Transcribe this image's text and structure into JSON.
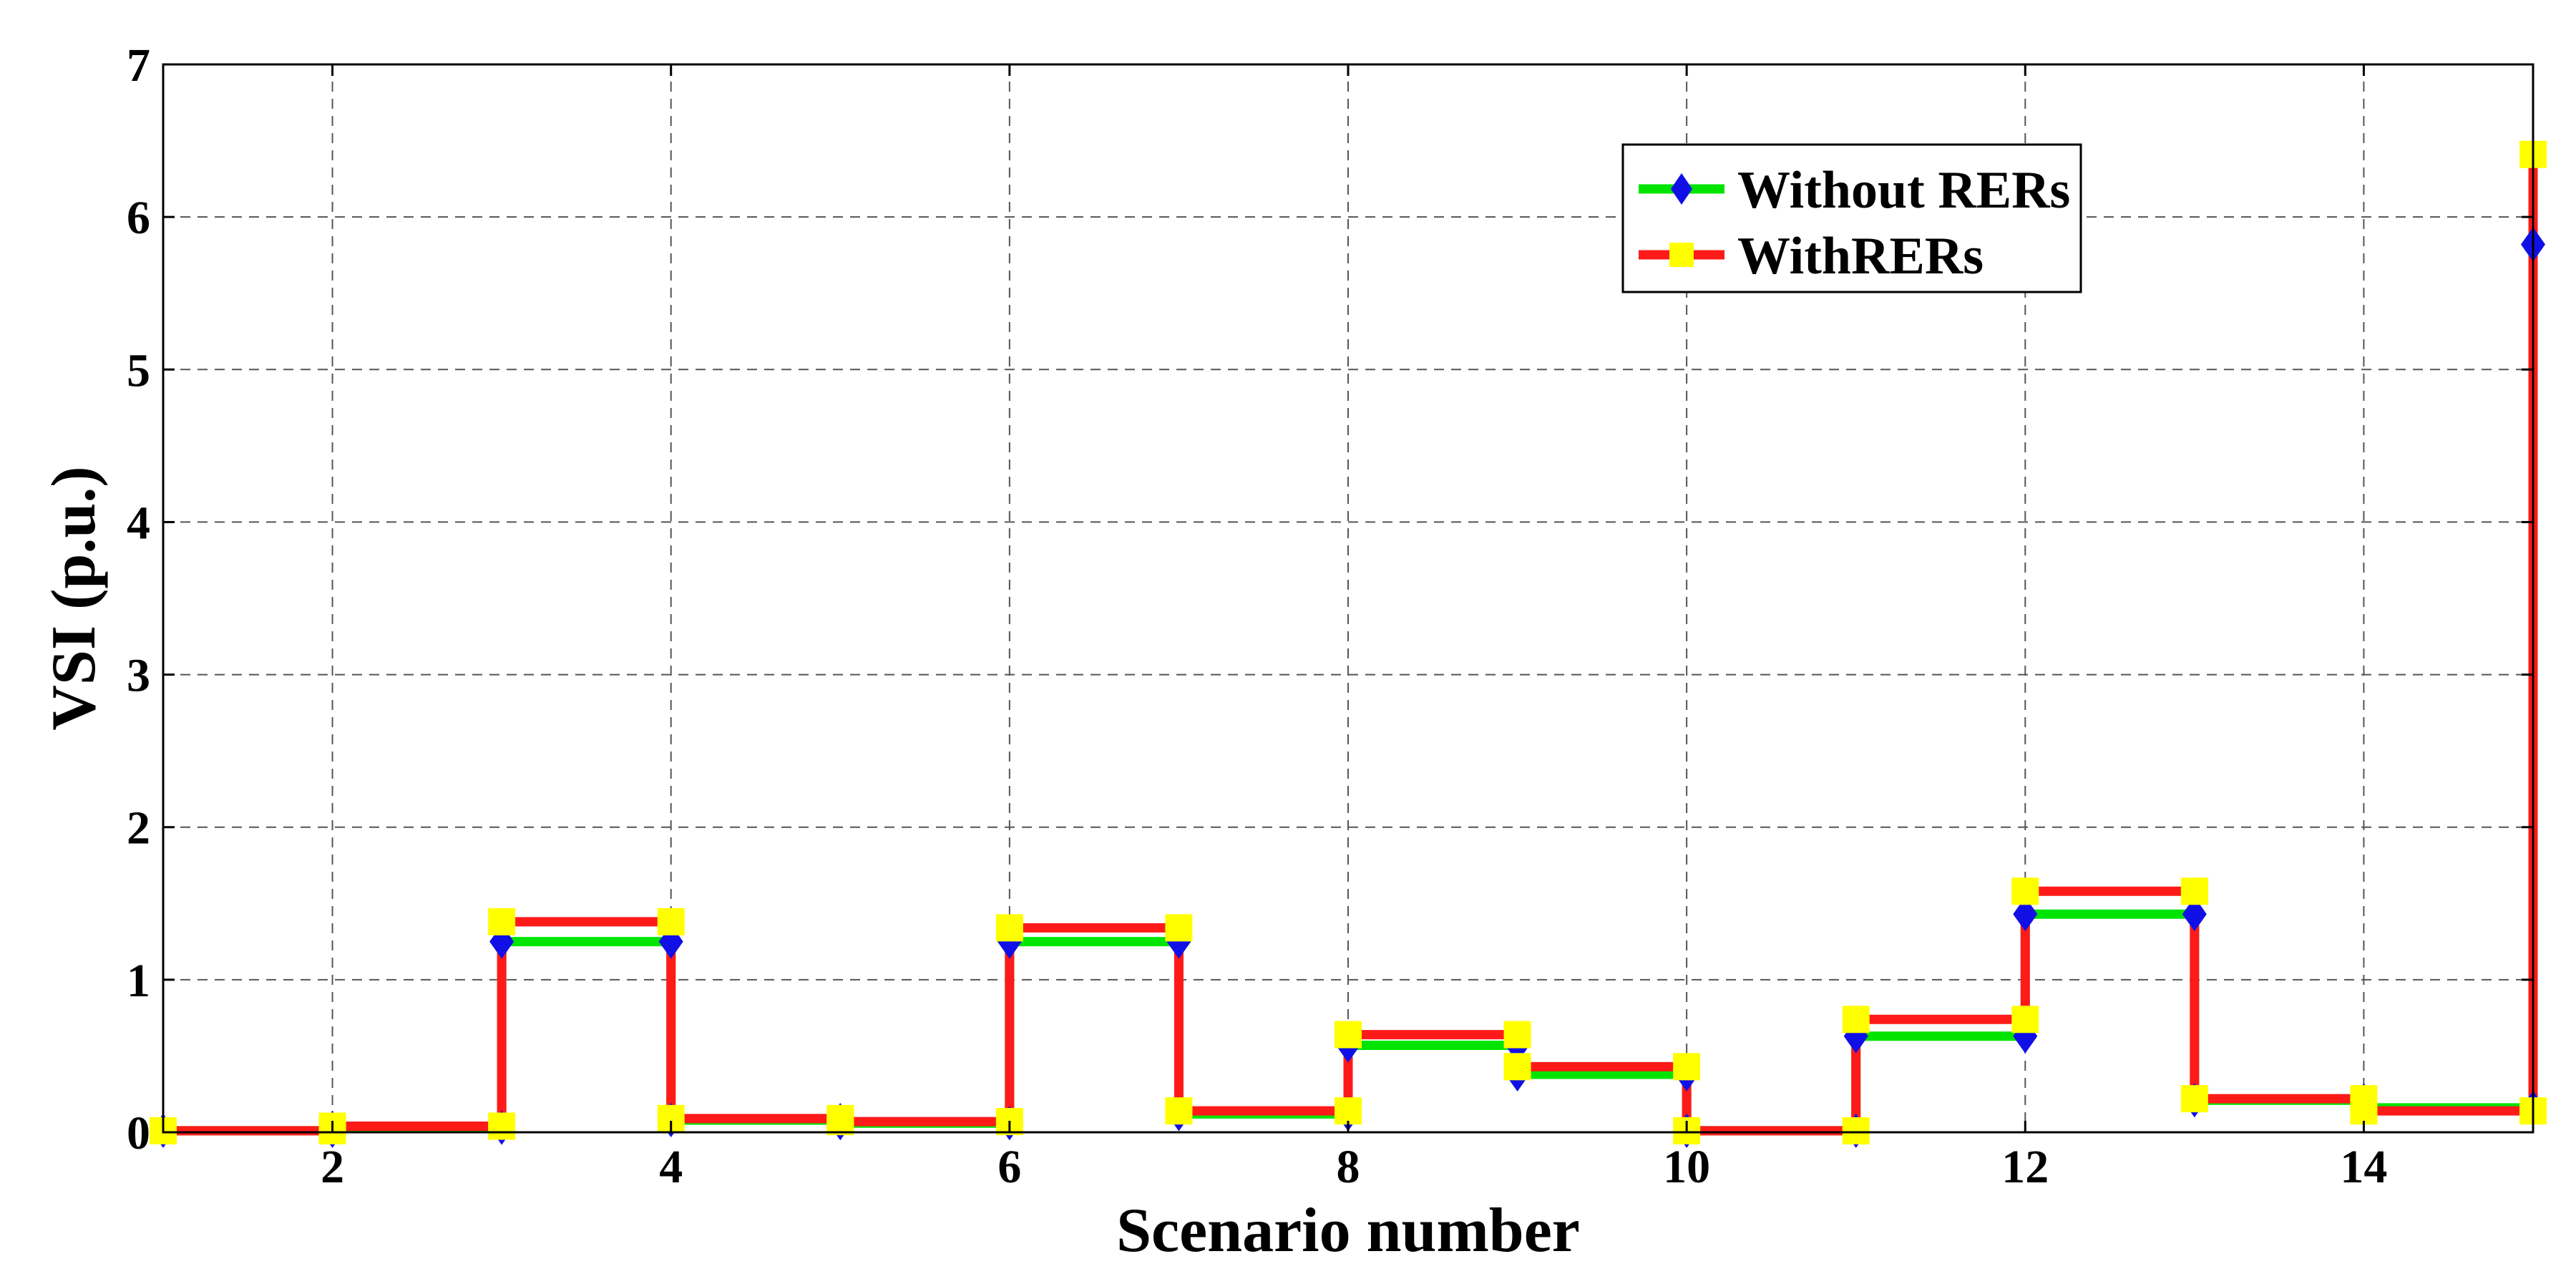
{
  "chart_data": {
    "type": "line",
    "title": "",
    "xlabel": "Scenario number",
    "ylabel": "VSI (p.u.)",
    "xlim": [
      1,
      15
    ],
    "ylim": [
      0,
      7
    ],
    "xticks": [
      2,
      4,
      6,
      8,
      10,
      12,
      14
    ],
    "yticks": [
      0,
      1,
      2,
      3,
      4,
      5,
      6,
      7
    ],
    "grid": true,
    "step": "post",
    "legend_position": "top-right",
    "x": [
      1,
      2,
      3,
      4,
      5,
      6,
      7,
      8,
      9,
      10,
      11,
      12,
      13,
      14,
      15
    ],
    "series": [
      {
        "name": "Without RERs",
        "line_color": "#00e400",
        "marker": "diamond",
        "marker_color": "#1010e6",
        "values": [
          0.01,
          0.03,
          1.25,
          0.08,
          0.06,
          1.25,
          0.12,
          0.57,
          0.38,
          0.01,
          0.63,
          1.43,
          0.21,
          0.16,
          5.82
        ]
      },
      {
        "name": "WithRERs",
        "line_color": "#ff1a1a",
        "marker": "square",
        "marker_color": "#ffff00",
        "values": [
          0.01,
          0.04,
          1.38,
          0.09,
          0.07,
          1.34,
          0.14,
          0.64,
          0.43,
          0.01,
          0.74,
          1.58,
          0.22,
          0.14,
          6.41
        ]
      }
    ]
  }
}
